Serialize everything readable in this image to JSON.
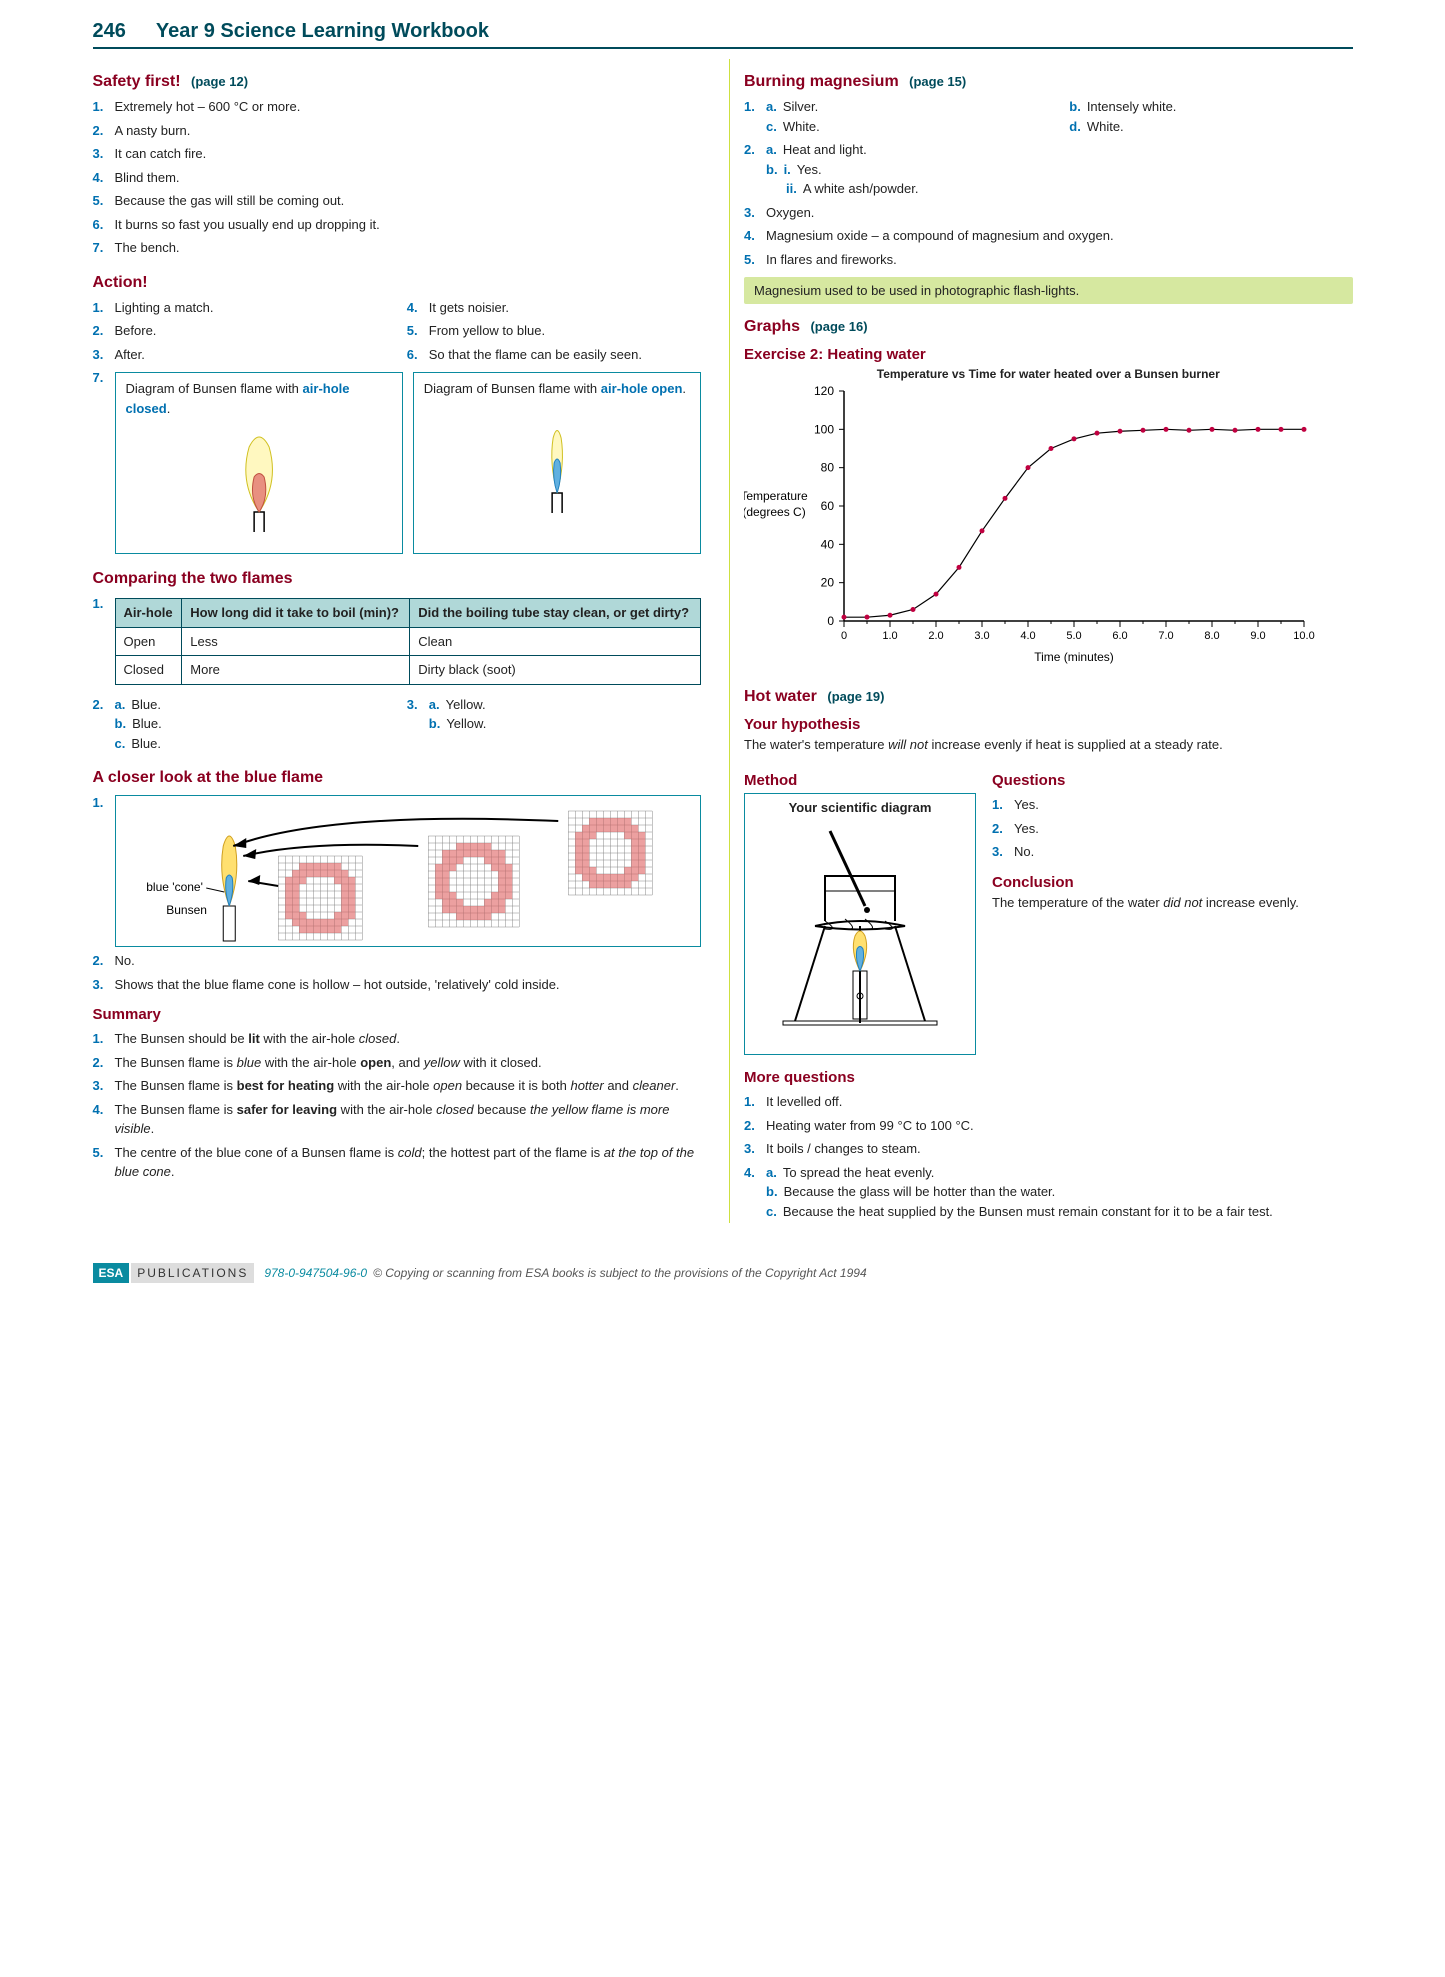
{
  "page_number": "246",
  "book_title": "Year 9 Science Learning Workbook",
  "left": {
    "safety": {
      "title": "Safety first!",
      "pageref": "(page 12)",
      "items": [
        "Extremely hot – 600 °C or more.",
        "A nasty burn.",
        "It can catch fire.",
        "Blind them.",
        "Because the gas will still be coming out.",
        "It burns so fast you usually end up dropping it.",
        "The bench."
      ]
    },
    "action": {
      "title": "Action!",
      "colA": [
        "Lighting a match.",
        "Before.",
        "After."
      ],
      "colB": [
        "It gets noisier.",
        "From yellow to blue.",
        "So that the flame can be easily seen."
      ],
      "diagA_caption": "Diagram of Bunsen flame with",
      "diagA_emph": "air-hole closed",
      "diagB_caption": "Diagram of Bunsen flame with",
      "diagB_emph": "air-hole open"
    },
    "compare": {
      "title": "Comparing the two flames",
      "table": {
        "headers": [
          "Air-hole",
          "How long did it take to boil  (min)?",
          "Did the boiling tube stay clean, or get dirty?"
        ],
        "rows": [
          [
            "Open",
            "Less",
            "Clean"
          ],
          [
            "Closed",
            "More",
            "Dirty black (soot)"
          ]
        ]
      },
      "q2": [
        "Blue.",
        "Blue.",
        "Blue."
      ],
      "q3": [
        "Yellow.",
        "Yellow."
      ]
    },
    "closer": {
      "title": "A closer look at the blue flame",
      "label_cone": "blue 'cone'",
      "label_bunsen": "Bunsen",
      "q2": "No.",
      "q3": "Shows that the blue flame cone is hollow – hot outside, 'relatively' cold inside."
    },
    "summary": {
      "title": "Summary",
      "items_html": [
        "The Bunsen should be <b>lit</b> with the air-hole <i>closed</i>.",
        "The Bunsen flame is <i>blue</i> with the air-hole <b>open</b>, and <i>yellow</i> with it closed.",
        "The Bunsen flame is <b>best for heating</b> with the air-hole <i>open</i> because it is both <i>hotter</i> and <i>cleaner</i>.",
        "The Bunsen flame is <b>safer for leaving</b> with the air-hole <i>closed</i> because <i>the yellow flame is more visible</i>.",
        "The centre of the blue cone of a Bunsen flame is <i>cold</i>; the hottest part of the flame is <i>at the top of the blue cone</i>."
      ]
    }
  },
  "right": {
    "mag": {
      "title": "Burning magnesium",
      "pageref": "(page 15)",
      "q1a": "Silver.",
      "q1b": "Intensely white.",
      "q1c": "White.",
      "q1d": "White.",
      "q2a": "Heat and light.",
      "q2bi": "Yes.",
      "q2bii": "A white ash/powder.",
      "q3": "Oxygen.",
      "q4": "Magnesium oxide – a compound of magnesium and oxygen.",
      "q5": "In flares and fireworks.",
      "highlight": "Magnesium used to be used in photographic flash-lights."
    },
    "graphs": {
      "title": "Graphs",
      "pageref": "(page 16)",
      "exercise": "Exercise 2: Heating water",
      "chart_title": "Temperature vs Time for water heated over a Bunsen burner",
      "ylabel": "Temperature (degrees C)",
      "xlabel": "Time (minutes)",
      "chart": {
        "y_ticks": [
          0,
          20,
          40,
          60,
          80,
          100,
          120
        ],
        "x_ticks": [
          "0",
          "1.0",
          "2.0",
          "3.0",
          "4.0",
          "5.0",
          "6.0",
          "7.0",
          "8.0",
          "9.0",
          "10.0"
        ],
        "points": [
          [
            0,
            2
          ],
          [
            0.5,
            2
          ],
          [
            1,
            3
          ],
          [
            1.5,
            6
          ],
          [
            2,
            14
          ],
          [
            2.5,
            28
          ],
          [
            3,
            47
          ],
          [
            3.5,
            64
          ],
          [
            4,
            80
          ],
          [
            4.5,
            90
          ],
          [
            5,
            95
          ],
          [
            5.5,
            98
          ],
          [
            6,
            99
          ],
          [
            6.5,
            99.5
          ],
          [
            7,
            100
          ],
          [
            7.5,
            99.5
          ],
          [
            8,
            100
          ],
          [
            8.5,
            99.5
          ],
          [
            9,
            100
          ],
          [
            9.5,
            100
          ],
          [
            10,
            100
          ]
        ],
        "line_color": "#000",
        "point_color": "#c00040",
        "grid_color": "#000"
      }
    },
    "hotwater": {
      "title": "Hot water",
      "pageref": "(page 19)",
      "hyp_title": "Your hypothesis",
      "hyp_text": "The water's temperature <i>will not</i> increase evenly if heat is supplied at a steady rate.",
      "method_title": "Method",
      "method_box": "Your scientific diagram",
      "questions_title": "Questions",
      "questions": [
        "Yes.",
        "Yes.",
        "No."
      ],
      "conclusion_title": "Conclusion",
      "conclusion_text": "The temperature of the water <i>did not</i> increase evenly."
    },
    "moreq": {
      "title": "More questions",
      "items": [
        "It levelled off.",
        "Heating water from 99 °C to 100 °C.",
        "It boils / changes to steam."
      ],
      "q4a": "To spread the heat evenly.",
      "q4b": "Because the glass will be hotter than the water.",
      "q4c": "Because the heat supplied by the Bunsen must remain constant for it to be a fair test."
    }
  },
  "footer": {
    "esa": "ESA",
    "pub": "PUBLICATIONS",
    "isbn": "978-0-947504-96-0",
    "copy": "© Copying or scanning from ESA books is subject to the provisions of the Copyright Act 1994"
  }
}
